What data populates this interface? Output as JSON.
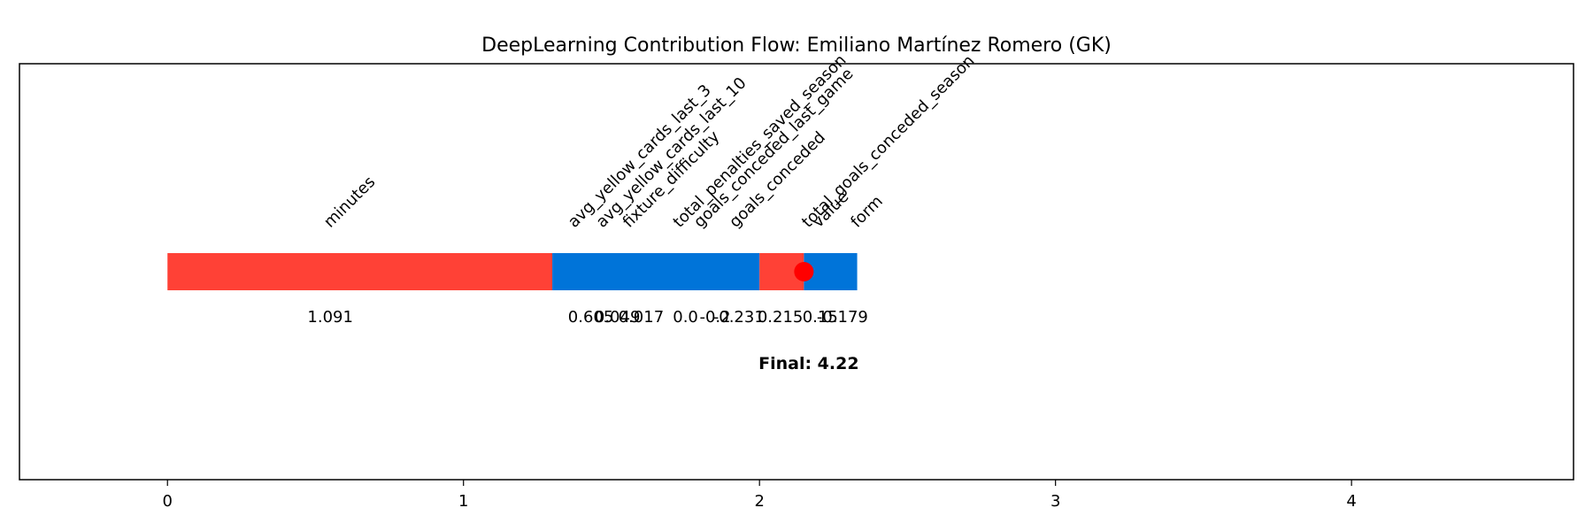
{
  "chart_data": {
    "type": "bar",
    "title": "DeepLearning Contribution Flow: Emiliano Martínez Romero (GK)",
    "xlabel": "",
    "ylabel": "",
    "xlim": [
      -0.5,
      4.75
    ],
    "xticks": [
      0,
      1,
      2,
      3,
      4
    ],
    "grid": false,
    "positive_color": "#ff4136",
    "negative_color": "#0074d9",
    "marker_color": "#ff0000",
    "contributions": [
      {
        "feature": "minutes",
        "value": 1.091,
        "label": "1.091",
        "sign": "positive"
      },
      {
        "feature": "avg_yellow_cards_last_3",
        "value": 0.605,
        "label": "0.605",
        "sign": "negative"
      },
      {
        "feature": "avg_yellow_cards_last_10",
        "value": 0.049,
        "label": "0.049",
        "sign": "negative"
      },
      {
        "feature": "fixture_difficulty",
        "value": 0.017,
        "label": "0.017",
        "sign": "negative"
      },
      {
        "feature": "total_penalties_saved_season",
        "value": 0.0,
        "label": "0.0",
        "sign": "negative"
      },
      {
        "feature": "goals_conceded_last_game",
        "value": -0.2,
        "label": "-0.2",
        "sign": "negative"
      },
      {
        "feature": "goals_conceded",
        "value": -0.231,
        "label": "-0.231",
        "sign": "negative"
      },
      {
        "feature": "total_goals_conceded_season",
        "value": 0.215,
        "label": "0.215",
        "sign": "positive"
      },
      {
        "feature": "value",
        "value": 0.15,
        "label": "0.15",
        "sign": "positive"
      },
      {
        "feature": "form",
        "value": -0.179,
        "label": "-0.179",
        "sign": "negative"
      }
    ],
    "bar_segments": [
      {
        "start": 0.0,
        "end": 1.3,
        "sign": "positive"
      },
      {
        "start": 1.3,
        "end": 2.0,
        "sign": "negative"
      },
      {
        "start": 2.0,
        "end": 2.15,
        "sign": "positive"
      },
      {
        "start": 2.15,
        "end": 2.33,
        "sign": "negative"
      }
    ],
    "marker_x": 2.15,
    "final_label": "Final: 4.22"
  }
}
